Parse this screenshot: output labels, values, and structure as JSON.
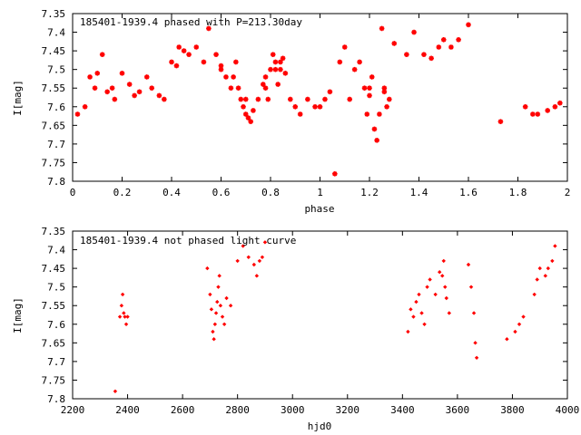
{
  "colors": {
    "marker": "#ff0000",
    "axis": "#000000",
    "background": "#ffffff"
  },
  "chart_data": [
    {
      "type": "scatter",
      "title": "185401-1939.4 phased with P=213.30day",
      "xlabel": "phase",
      "ylabel": "I[mag]",
      "xlim": [
        0,
        2
      ],
      "ylim": [
        7.35,
        7.8
      ],
      "y_inverted": true,
      "xticks": [
        "0",
        "0.2",
        "0.4",
        "0.6",
        "0.8",
        "1",
        "1.2",
        "1.4",
        "1.6",
        "1.8",
        "2"
      ],
      "yticks": [
        "7.35",
        "7.4",
        "7.45",
        "7.5",
        "7.55",
        "7.6",
        "7.65",
        "7.7",
        "7.75",
        "7.8"
      ],
      "grid": false,
      "marker": "cross-star",
      "series": [
        {
          "points": [
            [
              0.02,
              7.62
            ],
            [
              0.05,
              7.6
            ],
            [
              0.07,
              7.52
            ],
            [
              0.09,
              7.55
            ],
            [
              0.1,
              7.51
            ],
            [
              0.12,
              7.46
            ],
            [
              0.14,
              7.56
            ],
            [
              0.16,
              7.55
            ],
            [
              0.17,
              7.58
            ],
            [
              0.2,
              7.51
            ],
            [
              0.23,
              7.54
            ],
            [
              0.25,
              7.57
            ],
            [
              0.27,
              7.56
            ],
            [
              0.3,
              7.52
            ],
            [
              0.32,
              7.55
            ],
            [
              0.35,
              7.57
            ],
            [
              0.37,
              7.58
            ],
            [
              0.4,
              7.48
            ],
            [
              0.42,
              7.49
            ],
            [
              0.43,
              7.44
            ],
            [
              0.45,
              7.45
            ],
            [
              0.47,
              7.46
            ],
            [
              0.5,
              7.44
            ],
            [
              0.53,
              7.48
            ],
            [
              0.55,
              7.39
            ],
            [
              0.58,
              7.46
            ],
            [
              0.6,
              7.49
            ],
            [
              0.62,
              7.52
            ],
            [
              0.64,
              7.55
            ],
            [
              0.66,
              7.48
            ],
            [
              0.67,
              7.55
            ],
            [
              0.68,
              7.58
            ],
            [
              0.69,
              7.6
            ],
            [
              0.7,
              7.62
            ],
            [
              0.71,
              7.63
            ],
            [
              0.72,
              7.64
            ],
            [
              0.73,
              7.61
            ],
            [
              0.75,
              7.58
            ],
            [
              0.77,
              7.54
            ],
            [
              0.78,
              7.52
            ],
            [
              0.79,
              7.58
            ],
            [
              0.8,
              7.5
            ],
            [
              0.81,
              7.46
            ],
            [
              0.82,
              7.5
            ],
            [
              0.83,
              7.54
            ],
            [
              0.84,
              7.48
            ],
            [
              0.85,
              7.47
            ],
            [
              0.86,
              7.51
            ],
            [
              0.88,
              7.58
            ],
            [
              0.9,
              7.6
            ],
            [
              0.92,
              7.62
            ],
            [
              0.95,
              7.58
            ],
            [
              0.98,
              7.6
            ],
            [
              1.0,
              7.6
            ],
            [
              1.02,
              7.58
            ],
            [
              1.04,
              7.56
            ],
            [
              1.06,
              7.78
            ],
            [
              1.08,
              7.48
            ],
            [
              1.1,
              7.44
            ],
            [
              1.12,
              7.58
            ],
            [
              1.14,
              7.5
            ],
            [
              1.16,
              7.48
            ],
            [
              1.18,
              7.55
            ],
            [
              1.19,
              7.62
            ],
            [
              1.2,
              7.55
            ],
            [
              1.21,
              7.52
            ],
            [
              1.22,
              7.66
            ],
            [
              1.23,
              7.69
            ],
            [
              1.24,
              7.62
            ],
            [
              1.25,
              7.39
            ],
            [
              1.26,
              7.55
            ],
            [
              1.27,
              7.6
            ],
            [
              1.28,
              7.58
            ],
            [
              1.3,
              7.43
            ],
            [
              1.35,
              7.46
            ],
            [
              1.38,
              7.4
            ],
            [
              1.42,
              7.46
            ],
            [
              1.45,
              7.47
            ],
            [
              1.48,
              7.44
            ],
            [
              1.5,
              7.42
            ],
            [
              1.53,
              7.44
            ],
            [
              1.56,
              7.42
            ],
            [
              1.6,
              7.38
            ],
            [
              1.73,
              7.64
            ],
            [
              1.83,
              7.6
            ],
            [
              1.86,
              7.62
            ],
            [
              1.88,
              7.62
            ],
            [
              1.92,
              7.61
            ],
            [
              1.95,
              7.6
            ],
            [
              1.97,
              7.59
            ],
            [
              0.6,
              7.5
            ],
            [
              0.65,
              7.52
            ],
            [
              0.7,
              7.58
            ],
            [
              0.78,
              7.55
            ],
            [
              0.82,
              7.48
            ],
            [
              0.84,
              7.5
            ],
            [
              1.2,
              7.57
            ],
            [
              1.26,
              7.56
            ]
          ]
        }
      ]
    },
    {
      "type": "scatter",
      "title": "185401-1939.4 not phased light curve",
      "xlabel": "hjd0",
      "ylabel": "I[mag]",
      "xlim": [
        2200,
        4000
      ],
      "ylim": [
        7.35,
        7.8
      ],
      "y_inverted": true,
      "xticks": [
        "2200",
        "2400",
        "2600",
        "2800",
        "3000",
        "3200",
        "3400",
        "3600",
        "3800",
        "4000"
      ],
      "yticks": [
        "7.35",
        "7.4",
        "7.45",
        "7.5",
        "7.55",
        "7.6",
        "7.65",
        "7.7",
        "7.75",
        "7.8"
      ],
      "grid": false,
      "marker": "diamond",
      "series": [
        {
          "points": [
            [
              2355,
              7.78
            ],
            [
              2372,
              7.58
            ],
            [
              2378,
              7.55
            ],
            [
              2382,
              7.52
            ],
            [
              2386,
              7.57
            ],
            [
              2390,
              7.58
            ],
            [
              2395,
              7.6
            ],
            [
              2400,
              7.58
            ],
            [
              2690,
              7.45
            ],
            [
              2700,
              7.52
            ],
            [
              2705,
              7.56
            ],
            [
              2710,
              7.62
            ],
            [
              2714,
              7.64
            ],
            [
              2718,
              7.6
            ],
            [
              2722,
              7.57
            ],
            [
              2726,
              7.54
            ],
            [
              2730,
              7.5
            ],
            [
              2734,
              7.47
            ],
            [
              2738,
              7.55
            ],
            [
              2745,
              7.58
            ],
            [
              2752,
              7.6
            ],
            [
              2760,
              7.53
            ],
            [
              2775,
              7.55
            ],
            [
              2800,
              7.43
            ],
            [
              2820,
              7.39
            ],
            [
              2840,
              7.42
            ],
            [
              2860,
              7.44
            ],
            [
              2870,
              7.47
            ],
            [
              2880,
              7.43
            ],
            [
              2890,
              7.42
            ],
            [
              2900,
              7.38
            ],
            [
              3420,
              7.62
            ],
            [
              3430,
              7.56
            ],
            [
              3440,
              7.58
            ],
            [
              3450,
              7.54
            ],
            [
              3460,
              7.52
            ],
            [
              3470,
              7.57
            ],
            [
              3480,
              7.6
            ],
            [
              3490,
              7.5
            ],
            [
              3500,
              7.48
            ],
            [
              3520,
              7.52
            ],
            [
              3535,
              7.46
            ],
            [
              3545,
              7.47
            ],
            [
              3550,
              7.43
            ],
            [
              3555,
              7.5
            ],
            [
              3560,
              7.53
            ],
            [
              3570,
              7.57
            ],
            [
              3640,
              7.44
            ],
            [
              3650,
              7.5
            ],
            [
              3660,
              7.57
            ],
            [
              3665,
              7.65
            ],
            [
              3670,
              7.69
            ],
            [
              3780,
              7.64
            ],
            [
              3810,
              7.62
            ],
            [
              3825,
              7.6
            ],
            [
              3840,
              7.58
            ],
            [
              3880,
              7.52
            ],
            [
              3890,
              7.48
            ],
            [
              3900,
              7.45
            ],
            [
              3920,
              7.47
            ],
            [
              3930,
              7.45
            ],
            [
              3945,
              7.43
            ],
            [
              3955,
              7.39
            ]
          ]
        }
      ]
    }
  ]
}
